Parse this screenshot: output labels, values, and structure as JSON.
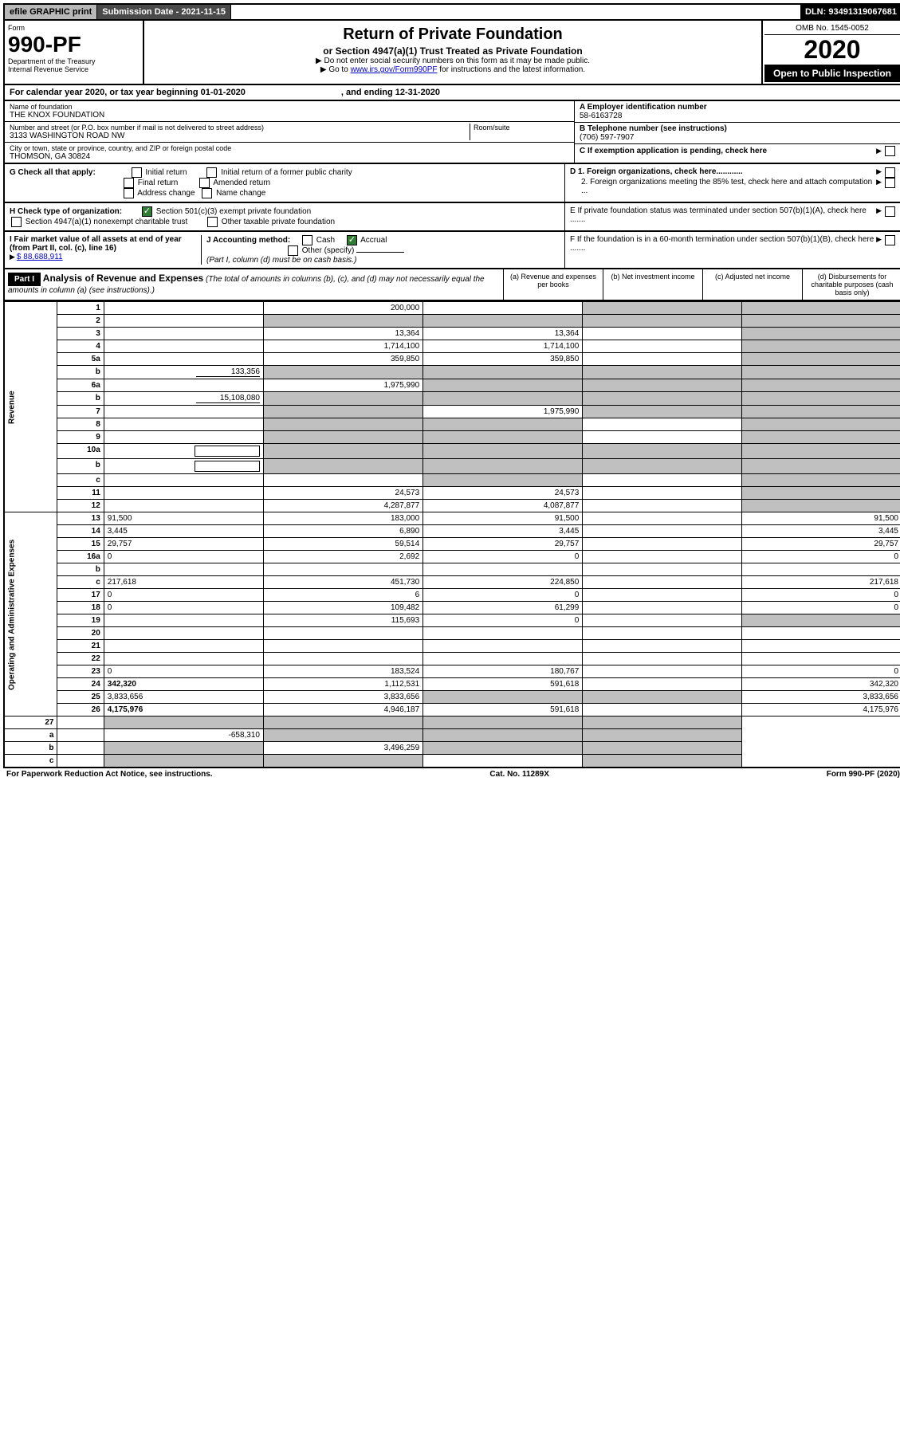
{
  "top": {
    "efile": "efile GRAPHIC print",
    "subdate_label": "Submission Date - 2021-11-15",
    "dln": "DLN: 93491319067681"
  },
  "header": {
    "form_label": "Form",
    "form_num": "990-PF",
    "dept": "Department of the Treasury",
    "irs": "Internal Revenue Service",
    "title": "Return of Private Foundation",
    "subtitle": "or Section 4947(a)(1) Trust Treated as Private Foundation",
    "note1": "▶ Do not enter social security numbers on this form as it may be made public.",
    "note2_pre": "▶ Go to ",
    "note2_link": "www.irs.gov/Form990PF",
    "note2_post": " for instructions and the latest information.",
    "omb": "OMB No. 1545-0052",
    "year": "2020",
    "open": "Open to Public Inspection"
  },
  "calyear": {
    "pre": "For calendar year 2020, or tax year beginning 01-01-2020",
    "end": ", and ending 12-31-2020"
  },
  "id": {
    "name_lbl": "Name of foundation",
    "name": "THE KNOX FOUNDATION",
    "addr_lbl": "Number and street (or P.O. box number if mail is not delivered to street address)",
    "addr": "3133 WASHINGTON ROAD NW",
    "room_lbl": "Room/suite",
    "city_lbl": "City or town, state or province, country, and ZIP or foreign postal code",
    "city": "THOMSON, GA  30824",
    "ein_lbl": "A Employer identification number",
    "ein": "58-6163728",
    "phone_lbl": "B Telephone number (see instructions)",
    "phone": "(706) 597-7907",
    "c_lbl": "C If exemption application is pending, check here"
  },
  "checks": {
    "g_lbl": "G Check all that apply:",
    "g_opts": [
      "Initial return",
      "Initial return of a former public charity",
      "Final return",
      "Amended return",
      "Address change",
      "Name change"
    ],
    "h_lbl": "H Check type of organization:",
    "h1": "Section 501(c)(3) exempt private foundation",
    "h2": "Section 4947(a)(1) nonexempt charitable trust",
    "h3": "Other taxable private foundation",
    "i_lbl": "I Fair market value of all assets at end of year (from Part II, col. (c), line 16)",
    "i_val": "$  88,688,911",
    "j_lbl": "J Accounting method:",
    "j_cash": "Cash",
    "j_accr": "Accrual",
    "j_other": "Other (specify)",
    "j_note": "(Part I, column (d) must be on cash basis.)",
    "d1": "D 1. Foreign organizations, check here............",
    "d2": "2. Foreign organizations meeting the 85% test, check here and attach computation ...",
    "e": "E  If private foundation status was terminated under section 507(b)(1)(A), check here .......",
    "f": "F  If the foundation is in a 60-month termination under section 507(b)(1)(B), check here .......",
    "accr_checked": true,
    "h1_checked": true
  },
  "part1": {
    "label": "Part I",
    "title": "Analysis of Revenue and Expenses",
    "title_note": "(The total of amounts in columns (b), (c), and (d) may not necessarily equal the amounts in column (a) (see instructions).)",
    "cols": {
      "a": "(a) Revenue and expenses per books",
      "b": "(b) Net investment income",
      "c": "(c) Adjusted net income",
      "d": "(d) Disbursements for charitable purposes (cash basis only)"
    }
  },
  "sections": {
    "revenue": "Revenue",
    "opex": "Operating and Administrative Expenses"
  },
  "lines": [
    {
      "n": "1",
      "d": "",
      "a": "200,000",
      "b": "",
      "c": "",
      "d_shade": true,
      "c_shade": true
    },
    {
      "n": "2",
      "d": "",
      "a": "",
      "b": "",
      "c": "",
      "a_shade": true,
      "b_shade": true,
      "c_shade": true,
      "d_shade": true,
      "bold_not": true
    },
    {
      "n": "3",
      "d": "",
      "a": "13,364",
      "b": "13,364",
      "c": "",
      "d_shade": true
    },
    {
      "n": "4",
      "d": "",
      "a": "1,714,100",
      "b": "1,714,100",
      "c": "",
      "d_shade": true
    },
    {
      "n": "5a",
      "d": "",
      "a": "359,850",
      "b": "359,850",
      "c": "",
      "d_shade": true
    },
    {
      "n": "b",
      "d": "",
      "inline_val": "133,356",
      "a": "",
      "b": "",
      "c": "",
      "a_shade": true,
      "b_shade": true,
      "c_shade": true,
      "d_shade": true
    },
    {
      "n": "6a",
      "d": "",
      "a": "1,975,990",
      "b": "",
      "c": "",
      "b_shade": true,
      "c_shade": true,
      "d_shade": true
    },
    {
      "n": "b",
      "d": "",
      "inline_val": "15,108,080",
      "a": "",
      "b": "",
      "c": "",
      "a_shade": true,
      "b_shade": true,
      "c_shade": true,
      "d_shade": true
    },
    {
      "n": "7",
      "d": "",
      "a": "",
      "b": "1,975,990",
      "c": "",
      "a_shade": true,
      "c_shade": true,
      "d_shade": true
    },
    {
      "n": "8",
      "d": "",
      "a": "",
      "b": "",
      "c": "",
      "a_shade": true,
      "b_shade": true,
      "d_shade": true
    },
    {
      "n": "9",
      "d": "",
      "a": "",
      "b": "",
      "c": "",
      "a_shade": true,
      "b_shade": true,
      "d_shade": true
    },
    {
      "n": "10a",
      "d": "",
      "inline_box": true,
      "a": "",
      "b": "",
      "c": "",
      "a_shade": true,
      "b_shade": true,
      "c_shade": true,
      "d_shade": true
    },
    {
      "n": "b",
      "d": "",
      "inline_box": true,
      "a": "",
      "b": "",
      "c": "",
      "a_shade": true,
      "b_shade": true,
      "c_shade": true,
      "d_shade": true
    },
    {
      "n": "c",
      "d": "",
      "a": "",
      "b": "",
      "c": "",
      "b_shade": true,
      "d_shade": true
    },
    {
      "n": "11",
      "d": "",
      "a": "24,573",
      "b": "24,573",
      "c": "",
      "d_shade": true
    },
    {
      "n": "12",
      "d": "",
      "a": "4,287,877",
      "b": "4,087,877",
      "c": "",
      "d_shade": true,
      "bold": true
    }
  ],
  "oplines": [
    {
      "n": "13",
      "d": "91,500",
      "a": "183,000",
      "b": "91,500",
      "c": ""
    },
    {
      "n": "14",
      "d": "3,445",
      "a": "6,890",
      "b": "3,445",
      "c": ""
    },
    {
      "n": "15",
      "d": "29,757",
      "a": "59,514",
      "b": "29,757",
      "c": ""
    },
    {
      "n": "16a",
      "d": "0",
      "a": "2,692",
      "b": "0",
      "c": ""
    },
    {
      "n": "b",
      "d": "",
      "a": "",
      "b": "",
      "c": ""
    },
    {
      "n": "c",
      "d": "217,618",
      "a": "451,730",
      "b": "224,850",
      "c": ""
    },
    {
      "n": "17",
      "d": "0",
      "a": "6",
      "b": "0",
      "c": ""
    },
    {
      "n": "18",
      "d": "0",
      "a": "109,482",
      "b": "61,299",
      "c": ""
    },
    {
      "n": "19",
      "d": "",
      "a": "115,693",
      "b": "0",
      "c": "",
      "d_shade": true
    },
    {
      "n": "20",
      "d": "",
      "a": "",
      "b": "",
      "c": ""
    },
    {
      "n": "21",
      "d": "",
      "a": "",
      "b": "",
      "c": ""
    },
    {
      "n": "22",
      "d": "",
      "a": "",
      "b": "",
      "c": ""
    },
    {
      "n": "23",
      "d": "0",
      "a": "183,524",
      "b": "180,767",
      "c": ""
    },
    {
      "n": "24",
      "d": "342,320",
      "a": "1,112,531",
      "b": "591,618",
      "c": "",
      "bold": true
    },
    {
      "n": "25",
      "d": "3,833,656",
      "a": "3,833,656",
      "b": "",
      "c": "",
      "b_shade": true,
      "c_shade": true
    },
    {
      "n": "26",
      "d": "4,175,976",
      "a": "4,946,187",
      "b": "591,618",
      "c": "",
      "bold": true
    }
  ],
  "sumlines": [
    {
      "n": "27",
      "d": "",
      "a": "",
      "b": "",
      "c": "",
      "a_shade": true,
      "b_shade": true,
      "c_shade": true,
      "d_shade": true
    },
    {
      "n": "a",
      "d": "",
      "a": "-658,310",
      "b": "",
      "c": "",
      "bold": true,
      "b_shade": true,
      "c_shade": true,
      "d_shade": true
    },
    {
      "n": "b",
      "d": "",
      "a": "",
      "b": "3,496,259",
      "c": "",
      "bold": true,
      "a_shade": true,
      "c_shade": true,
      "d_shade": true
    },
    {
      "n": "c",
      "d": "",
      "a": "",
      "b": "",
      "c": "",
      "bold": true,
      "a_shade": true,
      "b_shade": true,
      "d_shade": true
    }
  ],
  "footer": {
    "left": "For Paperwork Reduction Act Notice, see instructions.",
    "center": "Cat. No. 11289X",
    "right": "Form 990-PF (2020)"
  }
}
